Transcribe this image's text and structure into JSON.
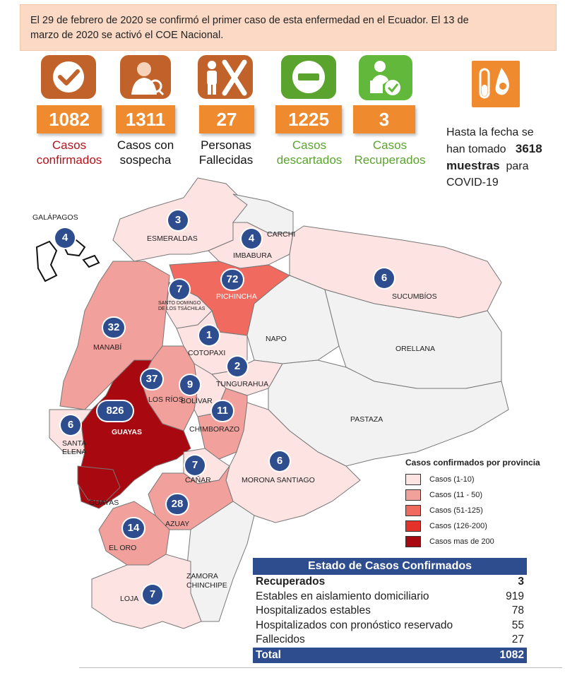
{
  "banner": {
    "line1": "El 29 de febrero de 2020 se confirmó el primer caso de esta enfermedad en el Ecuador. El 13 de",
    "line2": "marzo de 2020 se activó el COE Nacional."
  },
  "stats": [
    {
      "value": "1082",
      "label1": "Casos",
      "label2": "confirmados",
      "color": "#b5121b",
      "icon": "checkmark-icon",
      "icon_bg": "#c0622a"
    },
    {
      "value": "1311",
      "label1": "Casos con",
      "label2": "sospecha",
      "color": "#111111",
      "icon": "doctor-icon",
      "icon_bg": "#c0622a"
    },
    {
      "value": "27",
      "label1": "Personas",
      "label2": "Fallecidas",
      "color": "#111111",
      "icon": "deceased-person-icon",
      "icon_bg": "#c0622a"
    },
    {
      "value": "1225",
      "label1": "Casos",
      "label2": "descartados",
      "color": "#5aa42e",
      "icon": "minus-icon",
      "icon_bg": "#5aa42e"
    },
    {
      "value": "3",
      "label1": "Casos",
      "label2": "Recuperados",
      "color": "#5aa42e",
      "icon": "recovered-person-icon",
      "icon_bg": "#62b83a"
    }
  ],
  "samples": {
    "part1": "Hasta la fecha se",
    "part2": "han tomado",
    "count": "3618",
    "part3": "muestras",
    "part4": "para",
    "part5": "COVID-19",
    "icon": "test-tube-icon"
  },
  "colors": {
    "accent_orange": "#ef8a2f",
    "range_1_10": "#fde4e3",
    "range_11_50": "#f2a09c",
    "range_51_125": "#f06a5f",
    "range_126_200": "#e4322b",
    "range_200_plus": "#a8080f",
    "no_cases": "#f2f2f2",
    "marker": "#2e4d8f"
  },
  "provinces": [
    {
      "name": "ESMERALDAS",
      "cases": "3"
    },
    {
      "name": "CARCHI",
      "cases": ""
    },
    {
      "name": "IMBABURA",
      "cases": "4"
    },
    {
      "name": "SUCUMBÍOS",
      "cases": "6"
    },
    {
      "name": "PICHINCHA",
      "cases": "72"
    },
    {
      "name": "SANTO DOMINGO\nDE LOS TSÁCHILAS",
      "cases": "7"
    },
    {
      "name": "MANABÍ",
      "cases": "32"
    },
    {
      "name": "NAPO",
      "cases": ""
    },
    {
      "name": "ORELLANA",
      "cases": ""
    },
    {
      "name": "COTOPAXI",
      "cases": "1"
    },
    {
      "name": "TUNGURAHUA",
      "cases": "2"
    },
    {
      "name": "LOS RÍOS",
      "cases": "37"
    },
    {
      "name": "BOLÍVAR",
      "cases": "9"
    },
    {
      "name": "GUAYAS",
      "cases": "826"
    },
    {
      "name": "SANTA\nELENA",
      "cases": "6"
    },
    {
      "name": "CHIMBORAZO",
      "cases": "11"
    },
    {
      "name": "PASTAZA",
      "cases": ""
    },
    {
      "name": "CAÑAR",
      "cases": "7"
    },
    {
      "name": "MORONA SANTIAGO",
      "cases": "6"
    },
    {
      "name": "AZUAY",
      "cases": "28"
    },
    {
      "name": "EL ORO",
      "cases": "14"
    },
    {
      "name": "ZAMORA\nCHINCHIPE",
      "cases": ""
    },
    {
      "name": "LOJA",
      "cases": "7"
    },
    {
      "name": "GALÁPAGOS",
      "cases": "4"
    }
  ],
  "guayas_lower_label": "GUAYAS",
  "legend": {
    "title": "Casos confirmados por provincia",
    "items": [
      {
        "label": "Casos (1-10)",
        "color": "#fde4e3"
      },
      {
        "label": "Casos (11 - 50)",
        "color": "#f2a09c"
      },
      {
        "label": "Casos (51-125)",
        "color": "#f06a5f"
      },
      {
        "label": "Casos (126-200)",
        "color": "#e4322b"
      },
      {
        "label": "Casos mas de 200",
        "color": "#a8080f"
      }
    ]
  },
  "status_table": {
    "title": "Estado de Casos Confirmados",
    "rows": [
      {
        "label": "Recuperados",
        "value": "3",
        "bold": true
      },
      {
        "label": "Estables en aislamiento domiciliario",
        "value": "919",
        "bold": false
      },
      {
        "label": "Hospitalizados estables",
        "value": "78",
        "bold": false
      },
      {
        "label": "Hospitalizados con pronóstico reservado",
        "value": "55",
        "bold": false
      },
      {
        "label": "Fallecidos",
        "value": "27",
        "bold": false
      }
    ],
    "total_label": "Total",
    "total_value": "1082"
  }
}
